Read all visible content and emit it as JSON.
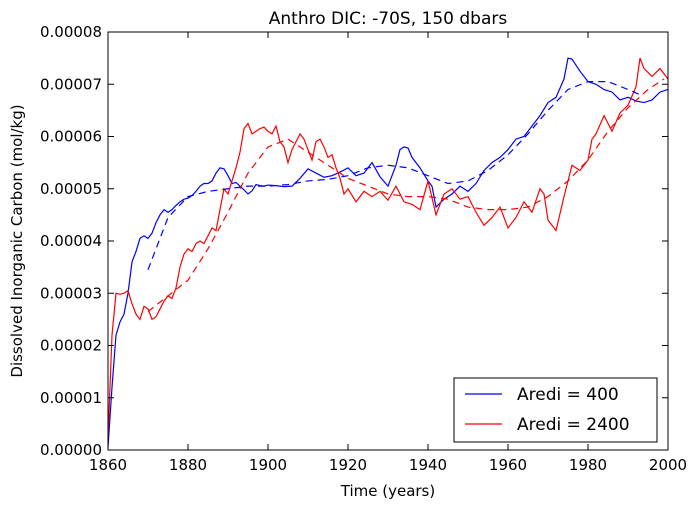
{
  "chart_data": {
    "type": "line",
    "title": "Anthro DIC: -70S, 150 dbars",
    "xlabel": "Time (years)",
    "ylabel": "Dissolved Inorganic Carbon (mol/kg)",
    "xlim": [
      1860,
      2000
    ],
    "ylim": [
      0,
      8e-05
    ],
    "xticks": [
      1860,
      1880,
      1900,
      1920,
      1940,
      1960,
      1980,
      2000
    ],
    "xtick_labels": [
      "1860",
      "1880",
      "1900",
      "1920",
      "1940",
      "1960",
      "1980",
      "2000"
    ],
    "yticks": [
      0,
      1e-05,
      2e-05,
      3e-05,
      4e-05,
      5e-05,
      6e-05,
      7e-05,
      8e-05
    ],
    "ytick_labels": [
      "0.00000",
      "0.00001",
      "0.00002",
      "0.00003",
      "0.00004",
      "0.00005",
      "0.00006",
      "0.00007",
      "0.00008"
    ],
    "grid": false,
    "legend_position": "lower-right",
    "legend": [
      "Aredi = 400",
      "Aredi = 2400"
    ],
    "series": [
      {
        "name": "Aredi = 400",
        "color": "#0000ff",
        "style": "solid",
        "x": [
          1860,
          1861,
          1862,
          1863,
          1864,
          1865,
          1866,
          1867,
          1868,
          1869,
          1870,
          1871,
          1872,
          1873,
          1874,
          1875,
          1876,
          1877,
          1878,
          1879,
          1880,
          1881,
          1882,
          1883,
          1884,
          1885,
          1886,
          1887,
          1888,
          1889,
          1890,
          1891,
          1892,
          1893,
          1894,
          1895,
          1896,
          1897,
          1898,
          1899,
          1900,
          1902,
          1904,
          1906,
          1908,
          1910,
          1912,
          1914,
          1916,
          1918,
          1920,
          1922,
          1924,
          1926,
          1928,
          1930,
          1932,
          1933,
          1934,
          1935,
          1936,
          1938,
          1940,
          1941,
          1942,
          1944,
          1946,
          1948,
          1950,
          1952,
          1954,
          1956,
          1958,
          1960,
          1962,
          1964,
          1966,
          1968,
          1970,
          1972,
          1974,
          1975,
          1976,
          1978,
          1980,
          1982,
          1984,
          1986,
          1988,
          1990,
          1992,
          1994,
          1996,
          1998,
          2000
        ],
        "y": [
          5e-07,
          1.2e-05,
          2.2e-05,
          2.45e-05,
          2.6e-05,
          3e-05,
          3.6e-05,
          3.8e-05,
          4.05e-05,
          4.1e-05,
          4.05e-05,
          4.15e-05,
          4.35e-05,
          4.5e-05,
          4.6e-05,
          4.55e-05,
          4.6e-05,
          4.68e-05,
          4.75e-05,
          4.8e-05,
          4.82e-05,
          4.87e-05,
          4.95e-05,
          5.05e-05,
          5.1e-05,
          5.1e-05,
          5.15e-05,
          5.3e-05,
          5.4e-05,
          5.38e-05,
          5.25e-05,
          5.1e-05,
          5.12e-05,
          5.05e-05,
          4.98e-05,
          4.9e-05,
          4.96e-05,
          5.08e-05,
          5.06e-05,
          5.05e-05,
          5.07e-05,
          5.06e-05,
          5.04e-05,
          5.05e-05,
          5.2e-05,
          5.38e-05,
          5.3e-05,
          5.22e-05,
          5.25e-05,
          5.32e-05,
          5.4e-05,
          5.25e-05,
          5.3e-05,
          5.5e-05,
          5.23e-05,
          5.05e-05,
          5.45e-05,
          5.75e-05,
          5.8e-05,
          5.78e-05,
          5.6e-05,
          5.4e-05,
          5.15e-05,
          5.05e-05,
          4.65e-05,
          4.8e-05,
          4.9e-05,
          5.05e-05,
          4.95e-05,
          5.1e-05,
          5.35e-05,
          5.5e-05,
          5.6e-05,
          5.75e-05,
          5.95e-05,
          6e-05,
          6.2e-05,
          6.4e-05,
          6.65e-05,
          6.75e-05,
          7.1e-05,
          7.5e-05,
          7.48e-05,
          7.25e-05,
          7.05e-05,
          7e-05,
          6.9e-05,
          6.85e-05,
          6.7e-05,
          6.75e-05,
          6.68e-05,
          6.65e-05,
          6.7e-05,
          6.85e-05,
          6.9e-05
        ]
      },
      {
        "name": "Aredi = 2400",
        "color": "#ff0000",
        "style": "solid",
        "x": [
          1860,
          1861,
          1862,
          1863,
          1864,
          1865,
          1866,
          1867,
          1868,
          1869,
          1870,
          1871,
          1872,
          1873,
          1874,
          1875,
          1876,
          1877,
          1878,
          1879,
          1880,
          1881,
          1882,
          1883,
          1884,
          1885,
          1886,
          1887,
          1888,
          1889,
          1890,
          1891,
          1892,
          1893,
          1894,
          1895,
          1896,
          1897,
          1898,
          1899,
          1900,
          1901,
          1902,
          1903,
          1904,
          1905,
          1906,
          1907,
          1908,
          1909,
          1910,
          1911,
          1912,
          1913,
          1914,
          1915,
          1916,
          1917,
          1918,
          1919,
          1920,
          1922,
          1924,
          1926,
          1928,
          1930,
          1932,
          1934,
          1936,
          1938,
          1940,
          1942,
          1944,
          1946,
          1948,
          1950,
          1952,
          1954,
          1956,
          1958,
          1960,
          1962,
          1964,
          1966,
          1968,
          1969,
          1970,
          1972,
          1974,
          1976,
          1978,
          1980,
          1981,
          1982,
          1984,
          1986,
          1988,
          1990,
          1992,
          1993,
          1994,
          1996,
          1998,
          2000
        ],
        "y": [
          2e-06,
          2.2e-05,
          3e-05,
          2.98e-05,
          3e-05,
          3.05e-05,
          2.8e-05,
          2.6e-05,
          2.5e-05,
          2.75e-05,
          2.7e-05,
          2.5e-05,
          2.55e-05,
          2.7e-05,
          2.85e-05,
          2.95e-05,
          2.9e-05,
          3.1e-05,
          3.5e-05,
          3.75e-05,
          3.85e-05,
          3.8e-05,
          3.95e-05,
          4e-05,
          3.95e-05,
          4.1e-05,
          4.25e-05,
          4.2e-05,
          4.6e-05,
          5e-05,
          4.9e-05,
          5.15e-05,
          5.4e-05,
          5.7e-05,
          6.15e-05,
          6.25e-05,
          6.05e-05,
          6.1e-05,
          6.15e-05,
          6.18e-05,
          6.1e-05,
          6.05e-05,
          6.2e-05,
          5.9e-05,
          5.8e-05,
          5.5e-05,
          5.75e-05,
          5.9e-05,
          6.05e-05,
          5.95e-05,
          5.75e-05,
          5.55e-05,
          5.9e-05,
          5.95e-05,
          5.8e-05,
          5.6e-05,
          5.65e-05,
          5.4e-05,
          5.2e-05,
          4.9e-05,
          5e-05,
          4.75e-05,
          4.95e-05,
          4.85e-05,
          4.95e-05,
          4.78e-05,
          5.05e-05,
          4.75e-05,
          4.7e-05,
          4.6e-05,
          5.15e-05,
          4.5e-05,
          4.9e-05,
          5e-05,
          4.8e-05,
          4.85e-05,
          4.55e-05,
          4.3e-05,
          4.45e-05,
          4.65e-05,
          4.25e-05,
          4.45e-05,
          4.75e-05,
          4.55e-05,
          5e-05,
          4.9e-05,
          4.4e-05,
          4.2e-05,
          4.85e-05,
          5.45e-05,
          5.35e-05,
          5.55e-05,
          5.95e-05,
          6.05e-05,
          6.4e-05,
          6.1e-05,
          6.45e-05,
          6.6e-05,
          6.95e-05,
          7.5e-05,
          7.3e-05,
          7.15e-05,
          7.3e-05,
          7.1e-05
        ]
      },
      {
        "color": "#0000ff",
        "style": "dashed",
        "x": [
          1870,
          1875,
          1880,
          1885,
          1890,
          1895,
          1900,
          1905,
          1910,
          1915,
          1920,
          1925,
          1930,
          1935,
          1940,
          1945,
          1950,
          1955,
          1960,
          1965,
          1970,
          1975,
          1980,
          1985,
          1990,
          1993
        ],
        "y": [
          3.45e-05,
          4.45e-05,
          4.85e-05,
          4.95e-05,
          5e-05,
          5.05e-05,
          5.05e-05,
          5.08e-05,
          5.15e-05,
          5.18e-05,
          5.25e-05,
          5.4e-05,
          5.45e-05,
          5.4e-05,
          5.25e-05,
          5.1e-05,
          5.15e-05,
          5.35e-05,
          5.65e-05,
          6.05e-05,
          6.5e-05,
          6.9e-05,
          7.05e-05,
          7.05e-05,
          6.9e-05,
          6.8e-05
        ]
      },
      {
        "color": "#ff0000",
        "style": "dashed",
        "x": [
          1870,
          1875,
          1880,
          1885,
          1890,
          1895,
          1900,
          1905,
          1910,
          1915,
          1920,
          1925,
          1930,
          1935,
          1940,
          1945,
          1950,
          1955,
          1960,
          1965,
          1970,
          1975,
          1980,
          1985,
          1990,
          1995,
          1999
        ],
        "y": [
          2.65e-05,
          2.95e-05,
          3.25e-05,
          3.85e-05,
          4.55e-05,
          5.3e-05,
          5.8e-05,
          5.95e-05,
          5.7e-05,
          5.45e-05,
          5.2e-05,
          5.05e-05,
          4.9e-05,
          4.85e-05,
          4.85e-05,
          4.8e-05,
          4.65e-05,
          4.6e-05,
          4.6e-05,
          4.65e-05,
          4.85e-05,
          5.15e-05,
          5.55e-05,
          6.1e-05,
          6.55e-05,
          6.9e-05,
          7.1e-05
        ]
      }
    ]
  }
}
